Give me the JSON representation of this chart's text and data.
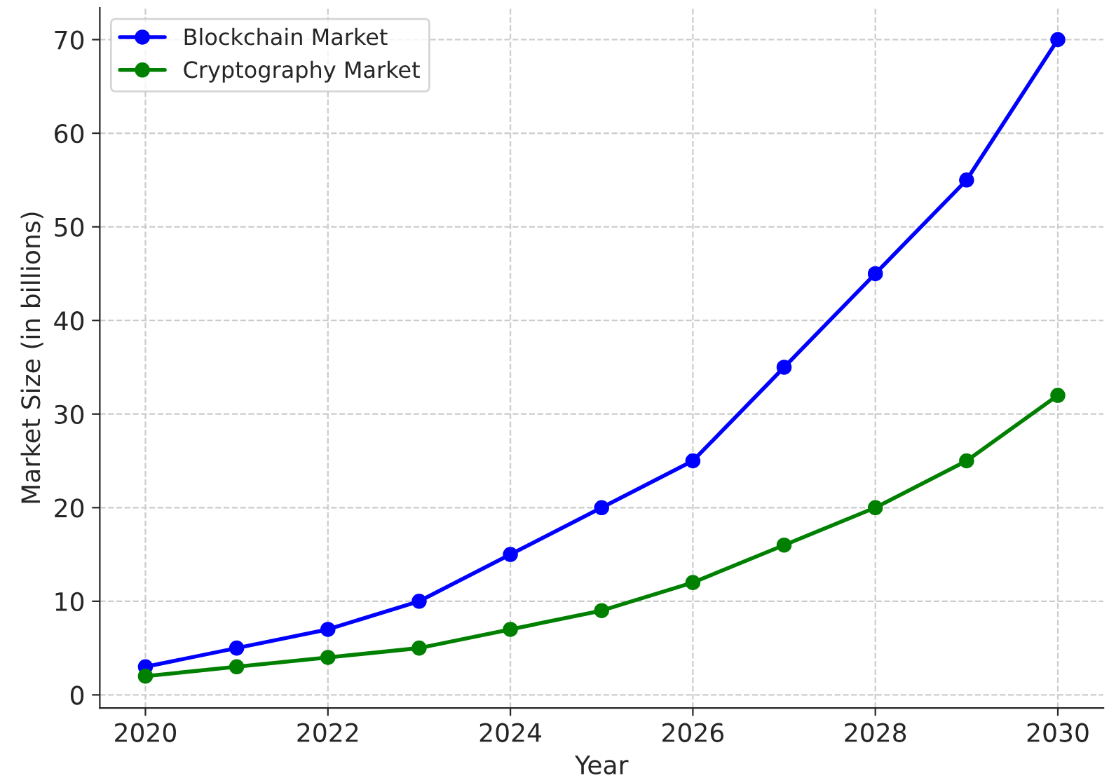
{
  "chart_data": {
    "type": "line",
    "xlabel": "Year",
    "ylabel": "Market Size (in billions)",
    "x": [
      2020,
      2021,
      2022,
      2023,
      2024,
      2025,
      2026,
      2027,
      2028,
      2029,
      2030
    ],
    "series": [
      {
        "name": "Blockchain Market",
        "color": "#0000ff",
        "values": [
          3,
          5,
          7,
          10,
          15,
          20,
          25,
          35,
          45,
          55,
          70
        ]
      },
      {
        "name": "Cryptography Market",
        "color": "#008000",
        "values": [
          2,
          3,
          4,
          5,
          7,
          9,
          12,
          16,
          20,
          25,
          32
        ]
      }
    ],
    "xlim": [
      2019.5,
      2030.5
    ],
    "xticks": [
      2020,
      2022,
      2024,
      2026,
      2028,
      2030
    ],
    "ylim": [
      -1.4,
      73.4
    ],
    "yticks": [
      0,
      10,
      20,
      30,
      40,
      50,
      60,
      70
    ],
    "grid": true,
    "legend": "top left",
    "marker": "circle",
    "line_style": "solid"
  }
}
